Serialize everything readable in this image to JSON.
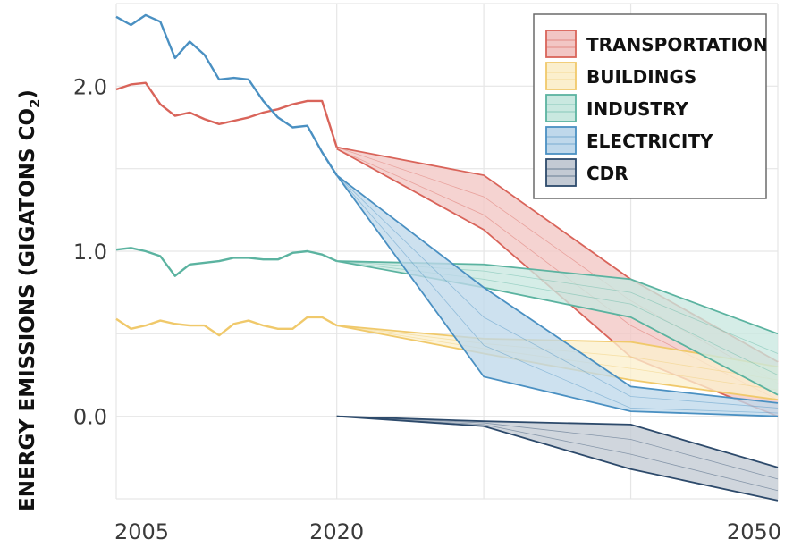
{
  "chart_data": {
    "type": "area",
    "ylabel": "ENERGY EMISSIONS (GIGATONS CO",
    "ylabel_subscript": "2",
    "ylabel_suffix": ")",
    "xlim": [
      2005,
      2050
    ],
    "ylim": [
      -0.5,
      2.5
    ],
    "x_ticks": [
      2005,
      2020,
      2050
    ],
    "y_ticks": [
      0.0,
      1.0,
      2.0
    ],
    "x_tick_labels": [
      "2005",
      "2020",
      "2050"
    ],
    "y_tick_labels": [
      "0.0",
      "1.0",
      "2.0"
    ],
    "x_gridlines": [
      2005,
      2020,
      2030,
      2040,
      2050
    ],
    "y_gridlines": [
      -0.5,
      0.0,
      0.5,
      1.0,
      1.5,
      2.0,
      2.5
    ],
    "grid": true,
    "legend_position": "top-right",
    "series": [
      {
        "name": "TRANSPORTATION",
        "color": "#d9645a",
        "fill": "#f2c6c4",
        "history": {
          "x": [
            2005,
            2006,
            2007,
            2008,
            2009,
            2010,
            2011,
            2012,
            2013,
            2014,
            2015,
            2016,
            2017,
            2018,
            2019,
            2020
          ],
          "y": [
            1.98,
            2.01,
            2.02,
            1.89,
            1.82,
            1.84,
            1.8,
            1.77,
            1.79,
            1.81,
            1.84,
            1.86,
            1.89,
            1.91,
            1.91,
            1.63
          ]
        },
        "projection": {
          "x": [
            2020,
            2030,
            2040,
            2050
          ],
          "upper": [
            1.63,
            1.46,
            0.83,
            0.33
          ],
          "lower": [
            1.62,
            1.13,
            0.36,
            0.0
          ],
          "inner": [
            [
              1.63,
              1.33,
              0.7,
              0.2
            ],
            [
              1.62,
              1.22,
              0.55,
              0.1
            ]
          ]
        }
      },
      {
        "name": "BUILDINGS",
        "color": "#f0c96b",
        "fill": "#fbefcd",
        "history": {
          "x": [
            2005,
            2006,
            2007,
            2008,
            2009,
            2010,
            2011,
            2012,
            2013,
            2014,
            2015,
            2016,
            2017,
            2018,
            2019,
            2020
          ],
          "y": [
            0.59,
            0.53,
            0.55,
            0.58,
            0.56,
            0.55,
            0.55,
            0.49,
            0.56,
            0.58,
            0.55,
            0.53,
            0.53,
            0.6,
            0.6,
            0.55
          ]
        },
        "projection": {
          "x": [
            2020,
            2030,
            2040,
            2050
          ],
          "upper": [
            0.55,
            0.47,
            0.45,
            0.3
          ],
          "lower": [
            0.55,
            0.38,
            0.22,
            0.1
          ],
          "inner": [
            [
              0.55,
              0.44,
              0.36,
              0.22
            ],
            [
              0.55,
              0.41,
              0.29,
              0.16
            ]
          ]
        }
      },
      {
        "name": "INDUSTRY",
        "color": "#5bb3a0",
        "fill": "#c9e8e0",
        "history": {
          "x": [
            2005,
            2006,
            2007,
            2008,
            2009,
            2010,
            2011,
            2012,
            2013,
            2014,
            2015,
            2016,
            2017,
            2018,
            2019,
            2020
          ],
          "y": [
            1.01,
            1.02,
            1.0,
            0.97,
            0.85,
            0.92,
            0.93,
            0.94,
            0.96,
            0.96,
            0.95,
            0.95,
            0.99,
            1.0,
            0.98,
            0.94
          ]
        },
        "projection": {
          "x": [
            2020,
            2030,
            2040,
            2050
          ],
          "upper": [
            0.94,
            0.92,
            0.83,
            0.5
          ],
          "lower": [
            0.94,
            0.78,
            0.6,
            0.13
          ],
          "inner": [
            [
              0.94,
              0.88,
              0.75,
              0.38
            ],
            [
              0.94,
              0.83,
              0.68,
              0.25
            ]
          ]
        }
      },
      {
        "name": "ELECTRICITY",
        "color": "#4a90c2",
        "fill": "#bfd8eb",
        "history": {
          "x": [
            2005,
            2006,
            2007,
            2008,
            2009,
            2010,
            2011,
            2012,
            2013,
            2014,
            2015,
            2016,
            2017,
            2018,
            2019,
            2020
          ],
          "y": [
            2.42,
            2.37,
            2.43,
            2.39,
            2.17,
            2.27,
            2.19,
            2.04,
            2.05,
            2.04,
            1.91,
            1.81,
            1.75,
            1.76,
            1.6,
            1.46
          ]
        },
        "projection": {
          "x": [
            2020,
            2030,
            2040,
            2050
          ],
          "upper": [
            1.46,
            0.78,
            0.18,
            0.08
          ],
          "lower": [
            1.46,
            0.24,
            0.03,
            0.0
          ],
          "inner": [
            [
              1.46,
              0.6,
              0.12,
              0.05
            ],
            [
              1.46,
              0.43,
              0.05,
              0.02
            ]
          ]
        }
      },
      {
        "name": "CDR",
        "color": "#2d4a6b",
        "fill": "#c3cad4",
        "history": {
          "x": [],
          "y": []
        },
        "projection": {
          "x": [
            2020,
            2030,
            2040,
            2050
          ],
          "upper": [
            0.0,
            -0.03,
            -0.05,
            -0.31
          ],
          "lower": [
            0.0,
            -0.06,
            -0.32,
            -0.51
          ],
          "inner": [
            [
              0.0,
              -0.04,
              -0.14,
              -0.38
            ],
            [
              0.0,
              -0.05,
              -0.23,
              -0.45
            ]
          ]
        }
      }
    ]
  }
}
